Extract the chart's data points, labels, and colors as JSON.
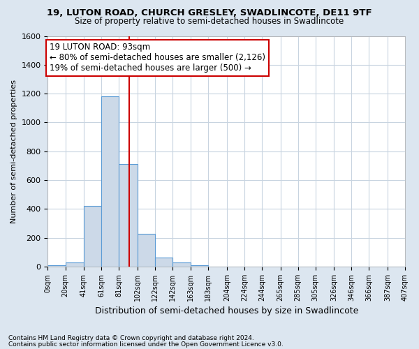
{
  "title1": "19, LUTON ROAD, CHURCH GRESLEY, SWADLINCOTE, DE11 9TF",
  "title2": "Size of property relative to semi-detached houses in Swadlincote",
  "xlabel": "Distribution of semi-detached houses by size in Swadlincote",
  "ylabel": "Number of semi-detached properties",
  "footnote1": "Contains HM Land Registry data © Crown copyright and database right 2024.",
  "footnote2": "Contains public sector information licensed under the Open Government Licence v3.0.",
  "bar_edges": [
    0,
    20,
    41,
    61,
    81,
    102,
    122,
    142,
    163,
    183,
    204,
    224,
    244,
    265,
    285,
    305,
    326,
    346,
    366,
    387,
    407
  ],
  "bar_heights": [
    12,
    28,
    420,
    1180,
    710,
    230,
    65,
    30,
    12,
    0,
    0,
    0,
    0,
    0,
    0,
    0,
    0,
    0,
    0,
    0
  ],
  "bar_color": "#ccd9e8",
  "bar_edge_color": "#5b9bd5",
  "property_size": 93,
  "vline_color": "#cc0000",
  "annotation_line1": "19 LUTON ROAD: 93sqm",
  "annotation_line2": "← 80% of semi-detached houses are smaller (2,126)",
  "annotation_line3": "19% of semi-detached houses are larger (500) →",
  "annotation_box_color": "#ffffff",
  "annotation_border_color": "#cc0000",
  "ylim": [
    0,
    1600
  ],
  "bg_color": "#dce6f0",
  "plot_bg_color": "#ffffff",
  "grid_color": "#c8d4e0",
  "tick_labels": [
    "0sqm",
    "20sqm",
    "41sqm",
    "61sqm",
    "81sqm",
    "102sqm",
    "122sqm",
    "142sqm",
    "163sqm",
    "183sqm",
    "204sqm",
    "224sqm",
    "244sqm",
    "265sqm",
    "285sqm",
    "305sqm",
    "326sqm",
    "346sqm",
    "366sqm",
    "387sqm",
    "407sqm"
  ]
}
